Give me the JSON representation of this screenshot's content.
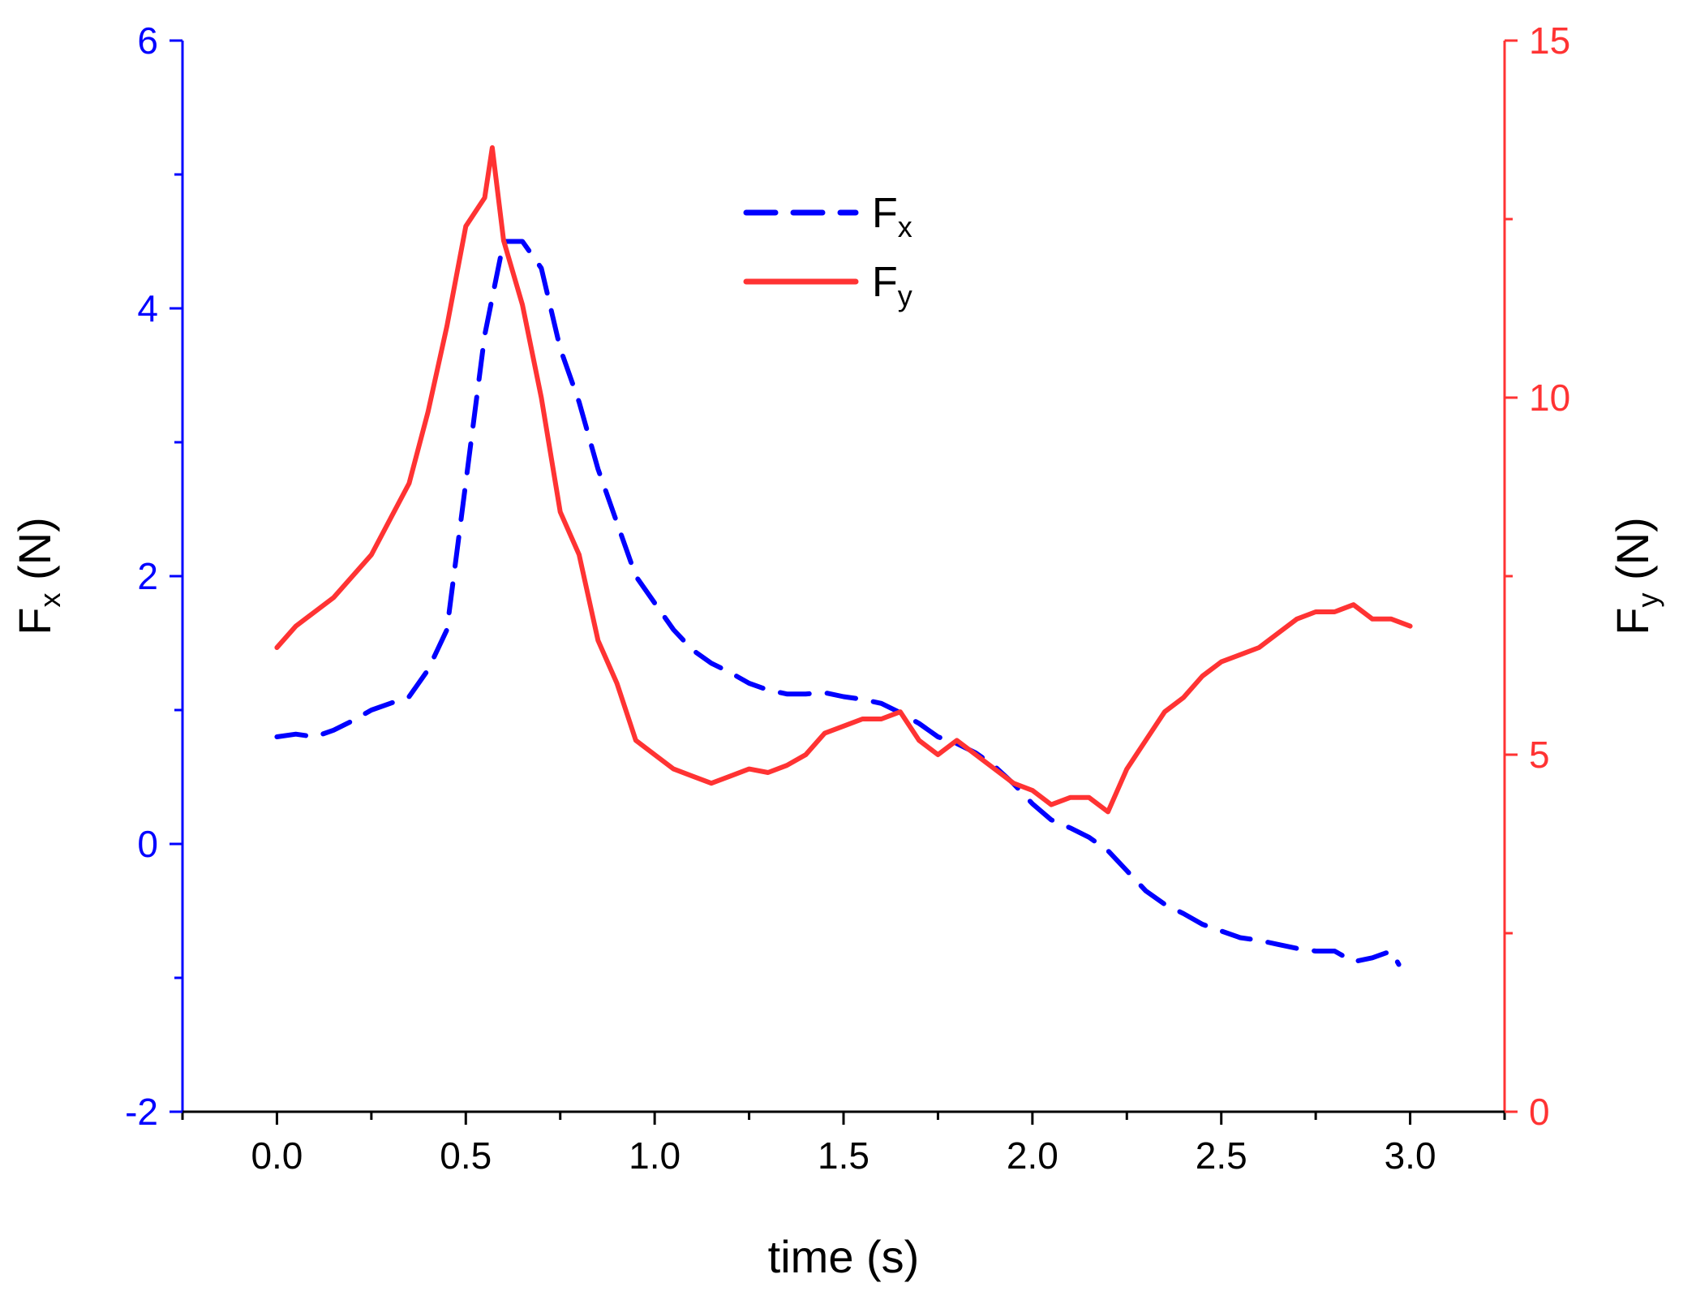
{
  "chart_data": {
    "type": "line",
    "xlabel": "time (s)",
    "xlim": [
      -0.25,
      3.25
    ],
    "xticks": [
      0.0,
      0.5,
      1.0,
      1.5,
      2.0,
      2.5,
      3.0
    ],
    "xtick_labels": [
      "0.0",
      "0.5",
      "1.0",
      "1.5",
      "2.0",
      "2.5",
      "3.0"
    ],
    "y_left": {
      "label_main": "F",
      "label_sub": "x",
      "label_unit": " (N)",
      "lim": [
        -2,
        6
      ],
      "ticks": [
        -2,
        0,
        2,
        4,
        6
      ],
      "tick_labels": [
        "-2",
        "0",
        "2",
        "4",
        "6"
      ],
      "color": "#0000ff"
    },
    "y_right": {
      "label_main": "F",
      "label_sub": "y",
      "label_unit": " (N)",
      "lim": [
        0,
        15
      ],
      "ticks": [
        0,
        5,
        10,
        15
      ],
      "tick_labels": [
        "0",
        "5",
        "10",
        "15"
      ],
      "color": "#ff3333"
    },
    "legend": {
      "position": "top-center",
      "entries": [
        {
          "main": "F",
          "sub": "x",
          "style": "dashed",
          "color": "#0000ff"
        },
        {
          "main": "F",
          "sub": "y",
          "style": "solid",
          "color": "#ff3333"
        }
      ]
    },
    "series": [
      {
        "name": "Fx",
        "axis": "left",
        "style": "dashed",
        "color": "#0000ff",
        "x": [
          0.0,
          0.05,
          0.1,
          0.15,
          0.2,
          0.25,
          0.3,
          0.35,
          0.4,
          0.45,
          0.5,
          0.55,
          0.6,
          0.65,
          0.7,
          0.75,
          0.8,
          0.85,
          0.9,
          0.95,
          1.0,
          1.05,
          1.1,
          1.15,
          1.2,
          1.25,
          1.3,
          1.35,
          1.4,
          1.45,
          1.5,
          1.55,
          1.6,
          1.65,
          1.7,
          1.75,
          1.8,
          1.85,
          1.9,
          1.95,
          2.0,
          2.05,
          2.1,
          2.15,
          2.2,
          2.25,
          2.3,
          2.35,
          2.4,
          2.45,
          2.5,
          2.55,
          2.6,
          2.65,
          2.7,
          2.75,
          2.8,
          2.85,
          2.9,
          2.95,
          2.97
        ],
        "values": [
          0.8,
          0.82,
          0.8,
          0.85,
          0.92,
          1.0,
          1.05,
          1.1,
          1.3,
          1.6,
          2.7,
          3.8,
          4.5,
          4.5,
          4.3,
          3.7,
          3.3,
          2.8,
          2.4,
          2.0,
          1.8,
          1.6,
          1.45,
          1.35,
          1.28,
          1.2,
          1.15,
          1.12,
          1.12,
          1.13,
          1.1,
          1.08,
          1.05,
          0.98,
          0.9,
          0.8,
          0.75,
          0.68,
          0.58,
          0.45,
          0.3,
          0.18,
          0.12,
          0.05,
          -0.05,
          -0.2,
          -0.35,
          -0.45,
          -0.52,
          -0.6,
          -0.65,
          -0.7,
          -0.72,
          -0.75,
          -0.78,
          -0.8,
          -0.8,
          -0.88,
          -0.85,
          -0.8,
          -0.9
        ]
      },
      {
        "name": "Fy",
        "axis": "right",
        "style": "solid",
        "color": "#ff3333",
        "x": [
          0.0,
          0.05,
          0.1,
          0.15,
          0.2,
          0.25,
          0.3,
          0.35,
          0.4,
          0.45,
          0.5,
          0.55,
          0.57,
          0.6,
          0.65,
          0.7,
          0.75,
          0.8,
          0.85,
          0.9,
          0.95,
          1.0,
          1.05,
          1.1,
          1.15,
          1.2,
          1.25,
          1.3,
          1.35,
          1.4,
          1.45,
          1.5,
          1.55,
          1.6,
          1.65,
          1.7,
          1.75,
          1.8,
          1.85,
          1.9,
          1.95,
          2.0,
          2.05,
          2.1,
          2.15,
          2.2,
          2.25,
          2.3,
          2.35,
          2.4,
          2.45,
          2.5,
          2.55,
          2.6,
          2.65,
          2.7,
          2.75,
          2.8,
          2.85,
          2.9,
          2.95,
          3.0
        ],
        "values": [
          6.5,
          6.8,
          7.0,
          7.2,
          7.5,
          7.8,
          8.3,
          8.8,
          9.8,
          11.0,
          12.4,
          12.8,
          13.5,
          12.2,
          11.3,
          10.0,
          8.4,
          7.8,
          6.6,
          6.0,
          5.2,
          5.0,
          4.8,
          4.7,
          4.6,
          4.7,
          4.8,
          4.75,
          4.85,
          5.0,
          5.3,
          5.4,
          5.5,
          5.5,
          5.6,
          5.2,
          5.0,
          5.2,
          5.0,
          4.8,
          4.6,
          4.5,
          4.3,
          4.4,
          4.4,
          4.2,
          4.8,
          5.2,
          5.6,
          5.8,
          6.1,
          6.3,
          6.4,
          6.5,
          6.7,
          6.9,
          7.0,
          7.0,
          7.1,
          6.9,
          6.9,
          6.8
        ]
      }
    ]
  }
}
